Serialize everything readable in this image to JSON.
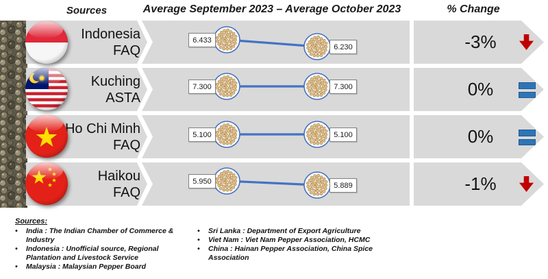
{
  "header": {
    "col_sources": "Sources",
    "col_period": "Average September 2023 – Average October 2023",
    "col_change": "% Change"
  },
  "rows": [
    {
      "source_line1": "Indonesia",
      "source_line2": "FAQ",
      "flag": "Indonesia",
      "sep_2023_avg": "6.433",
      "oct_2023_avg": "6.230",
      "pct_change": "-3%",
      "trend": "down",
      "trend_icon": "down-arrow-icon"
    },
    {
      "source_line1": "Kuching",
      "source_line2": "ASTA",
      "flag": "Malaysia",
      "sep_2023_avg": "7.300",
      "oct_2023_avg": "7.300",
      "pct_change": "0%",
      "trend": "equal",
      "trend_icon": "equals-icon"
    },
    {
      "source_line1": "Ho Chi Minh",
      "source_line2": "FAQ",
      "flag": "Vietnam",
      "sep_2023_avg": "5.100",
      "oct_2023_avg": "5.100",
      "pct_change": "0%",
      "trend": "equal",
      "trend_icon": "equals-icon"
    },
    {
      "source_line1": "Haikou",
      "source_line2": "FAQ",
      "flag": "China",
      "sep_2023_avg": "5.950",
      "oct_2023_avg": "5.889",
      "pct_change": "-1%",
      "trend": "down",
      "trend_icon": "down-arrow-icon"
    }
  ],
  "footer": {
    "title": "Sources:",
    "columns": [
      [
        "India : The Indian Chamber of Commerce & Industry",
        "Indonesia : Unofficial source, Regional Plantation and Livestock Service",
        "Malaysia : Malaysian Pepper Board"
      ],
      [
        "Sri Lanka : Department of Export Agriculture",
        "Viet Nam : Viet Nam Pepper Association, HCMC",
        "China : Hainan Pepper Association, China Spice Association"
      ]
    ]
  },
  "colors": {
    "band_gray": "#D9D9D9",
    "accent_blue": "#4472C4",
    "down_red": "#C00000",
    "equal_blue": "#2E75B6"
  },
  "chart_data": {
    "type": "line",
    "title": "Average September 2023 – Average October 2023",
    "x": [
      "Average September 2023",
      "Average October 2023"
    ],
    "categories": [
      "Indonesia FAQ",
      "Kuching ASTA",
      "Ho Chi Minh FAQ",
      "Haikou FAQ"
    ],
    "series": [
      {
        "name": "Indonesia FAQ",
        "values": [
          6.433,
          6.23
        ],
        "pct_change": "-3%"
      },
      {
        "name": "Kuching ASTA",
        "values": [
          7.3,
          7.3
        ],
        "pct_change": "0%"
      },
      {
        "name": "Ho Chi Minh FAQ",
        "values": [
          5.1,
          5.1
        ],
        "pct_change": "0%"
      },
      {
        "name": "Haikou FAQ",
        "values": [
          5.95,
          5.889
        ],
        "pct_change": "-1%"
      }
    ],
    "legend": false,
    "grid": false
  }
}
